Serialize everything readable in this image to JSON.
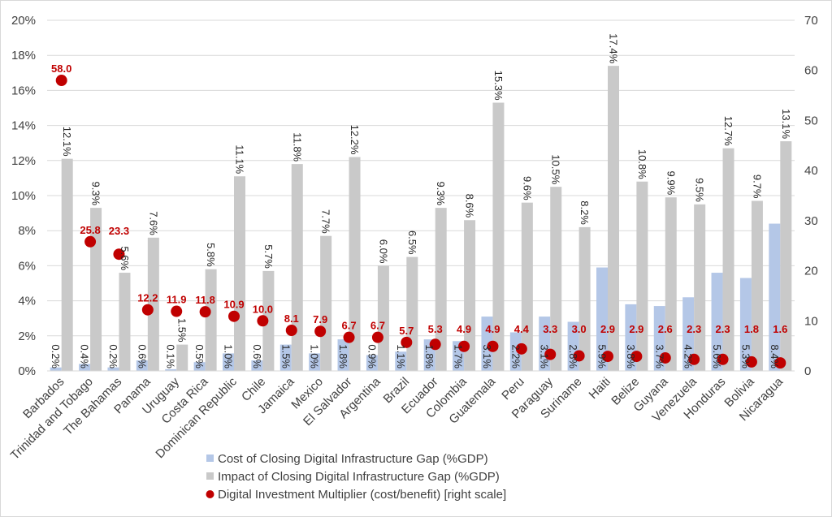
{
  "chart_data": {
    "type": "bar",
    "categories": [
      "Barbados",
      "Trinidad and Tobago",
      "The Bahamas",
      "Panama",
      "Uruguay",
      "Costa Rica",
      "Dominican Republic",
      "Chile",
      "Jamaica",
      "Mexico",
      "El Salvador",
      "Argentina",
      "Brazil",
      "Ecuador",
      "Colombia",
      "Guatemala",
      "Peru",
      "Paraguay",
      "Suriname",
      "Haiti",
      "Belize",
      "Guyana",
      "Venezuela",
      "Honduras",
      "Bolivia",
      "Nicaragua"
    ],
    "series": [
      {
        "name": "Cost of Closing Digital Infrastructure Gap (%GDP)",
        "type": "bar",
        "axis": "left",
        "color": "#b4c7e7",
        "values": [
          0.2,
          0.4,
          0.2,
          0.6,
          0.1,
          0.5,
          1.0,
          0.6,
          1.5,
          1.0,
          1.8,
          0.9,
          1.1,
          1.8,
          1.7,
          3.1,
          2.2,
          3.1,
          2.8,
          5.9,
          3.8,
          3.7,
          4.2,
          5.6,
          5.3,
          8.4
        ]
      },
      {
        "name": "Impact of Closing Digital Infrastructure Gap (%GDP)",
        "type": "bar",
        "axis": "left",
        "color": "#c9c9c9",
        "values": [
          12.1,
          9.3,
          5.6,
          7.6,
          1.5,
          5.8,
          11.1,
          5.7,
          11.8,
          7.7,
          12.2,
          6.0,
          6.5,
          9.3,
          8.6,
          15.3,
          9.6,
          10.5,
          8.2,
          17.4,
          10.8,
          9.9,
          9.5,
          12.7,
          9.7,
          13.1
        ]
      },
      {
        "name": "Digital Investment Multiplier (cost/benefit) [right scale]",
        "type": "scatter",
        "axis": "right",
        "color": "#c00000",
        "values": [
          58.0,
          25.8,
          23.3,
          12.2,
          11.9,
          11.8,
          10.9,
          10.0,
          8.1,
          7.9,
          6.7,
          6.7,
          5.7,
          5.3,
          4.9,
          4.9,
          4.4,
          3.3,
          3.0,
          2.9,
          2.9,
          2.6,
          2.3,
          2.3,
          1.8,
          1.6
        ]
      }
    ],
    "y_left": {
      "range": [
        0,
        20
      ],
      "ticks": [
        "0%",
        "2%",
        "4%",
        "6%",
        "8%",
        "10%",
        "12%",
        "14%",
        "16%",
        "18%",
        "20%"
      ]
    },
    "y_right": {
      "range": [
        0,
        70
      ],
      "ticks": [
        "0",
        "10",
        "20",
        "30",
        "40",
        "50",
        "60",
        "70"
      ]
    },
    "grid": true,
    "legend": "bottom"
  }
}
